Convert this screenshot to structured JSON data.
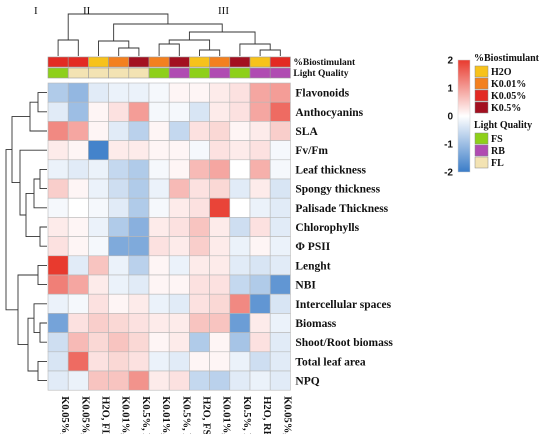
{
  "chart_data": {
    "type": "heatmap",
    "cluster_labels": [
      "I",
      "II",
      "III"
    ],
    "columns": [
      "K0.05%, FS",
      "K0.05%, FL",
      "H2O, FL",
      "K0.01%, FL",
      "K0.5%, FL",
      "K0.01%, FS",
      "K0.5%, RB",
      "H2O, FS",
      "K0.01%, RB",
      "K0.5%, FS",
      "H2O, RB",
      "K0.05%, RB"
    ],
    "rows": [
      "Flavonoids",
      "Anthocyanins",
      "SLA",
      "Fv/Fm",
      "Leaf thickness",
      "Spongy thickness",
      "Palisade Thickness",
      "Chlorophylls",
      "Φ PSII",
      "Lenght",
      "NBI",
      "Intercellular spaces",
      "Biomass",
      "Shoot/Root biomass",
      "Total leaf area",
      "NPQ"
    ],
    "values": [
      [
        -0.8,
        -1.1,
        -0.3,
        -0.2,
        -0.2,
        -0.1,
        0.1,
        0.1,
        0.2,
        0.3,
        0.9,
        1.0
      ],
      [
        -0.3,
        -1.0,
        0.1,
        0.3,
        1.0,
        -0.1,
        -0.1,
        -0.4,
        0.2,
        0.3,
        0.9,
        1.5
      ],
      [
        1.2,
        0.9,
        0.1,
        -0.3,
        -0.7,
        0.1,
        -0.6,
        0.3,
        0.4,
        0.1,
        0.2,
        0.5
      ],
      [
        0.2,
        0.1,
        -1.9,
        0.2,
        0.2,
        0.1,
        0.1,
        -0.1,
        0.3,
        0.2,
        0.3,
        -0.1
      ],
      [
        -0.2,
        -0.3,
        -0.2,
        -0.6,
        -0.8,
        -0.1,
        0.1,
        0.7,
        0.9,
        0.0,
        0.8,
        -0.1
      ],
      [
        0.5,
        0.1,
        -0.2,
        -0.5,
        -0.8,
        -0.2,
        0.7,
        0.3,
        0.4,
        -0.3,
        0.2,
        -0.4
      ],
      [
        -0.1,
        0.0,
        -0.1,
        -0.3,
        -0.8,
        -0.1,
        0.2,
        0.3,
        1.9,
        0.0,
        -0.2,
        -0.3
      ],
      [
        0.2,
        0.1,
        -0.2,
        -0.8,
        -1.2,
        0.2,
        0.3,
        0.6,
        0.2,
        -0.5,
        0.3,
        -0.3
      ],
      [
        0.3,
        0.1,
        -0.1,
        -1.3,
        -1.3,
        0.3,
        0.2,
        0.5,
        0.2,
        -0.2,
        0.1,
        -0.2
      ],
      [
        2.0,
        -0.3,
        0.6,
        -0.2,
        -0.7,
        0.1,
        -0.2,
        0.2,
        0.2,
        -0.3,
        -0.4,
        -0.3
      ],
      [
        1.3,
        0.9,
        0.2,
        -0.2,
        -0.3,
        0.1,
        0.1,
        0.3,
        0.3,
        -0.6,
        -0.8,
        -1.6
      ],
      [
        -0.2,
        -0.1,
        0.3,
        0.1,
        0.2,
        -0.2,
        -0.3,
        0.3,
        0.4,
        1.2,
        -1.6,
        -0.4
      ],
      [
        -1.4,
        0.3,
        0.5,
        0.4,
        0.3,
        0.2,
        0.2,
        0.6,
        0.6,
        -1.5,
        0.2,
        -0.2
      ],
      [
        -0.5,
        0.7,
        0.4,
        0.6,
        0.4,
        0.1,
        0.2,
        -0.8,
        0.1,
        -0.9,
        0.3,
        -0.3
      ],
      [
        -0.4,
        1.5,
        0.3,
        0.4,
        0.3,
        -0.2,
        -0.3,
        0.1,
        0.1,
        -0.2,
        -0.5,
        -0.3
      ],
      [
        -0.3,
        -0.2,
        0.6,
        0.6,
        1.1,
        0.2,
        0.3,
        -0.6,
        -0.7,
        -0.3,
        -0.2,
        -0.3
      ]
    ],
    "colorscale": {
      "min": -2,
      "max": 2,
      "ticks": [
        2,
        1,
        0,
        -1,
        -2
      ],
      "low": "#3a7cc8",
      "mid": "#ffffff",
      "high": "#e83a2e"
    },
    "annotations": [
      {
        "name": "%Biostimulant",
        "values": [
          "K0.05%",
          "K0.05%",
          "H2O",
          "K0.01%",
          "K0.5%",
          "K0.01%",
          "K0.5%",
          "H2O",
          "K0.01%",
          "K0.5%",
          "H2O",
          "K0.05%"
        ]
      },
      {
        "name": "Light Quality",
        "values": [
          "FS",
          "FL",
          "FL",
          "FL",
          "FL",
          "FS",
          "RB",
          "FS",
          "RB",
          "FS",
          "RB",
          "RB"
        ]
      }
    ],
    "legend": [
      {
        "title": "%Biostimulant",
        "items": [
          {
            "label": "H2O",
            "color": "#f7c21b"
          },
          {
            "label": "K0.01%",
            "color": "#f3801f"
          },
          {
            "label": "K0.05%",
            "color": "#e32a23"
          },
          {
            "label": "K0.5%",
            "color": "#a31020"
          }
        ]
      },
      {
        "title": "Light Quality",
        "items": [
          {
            "label": "FS",
            "color": "#8ed01a"
          },
          {
            "label": "RB",
            "color": "#b04bb2"
          },
          {
            "label": "FL",
            "color": "#f3e3b3"
          }
        ]
      }
    ]
  }
}
